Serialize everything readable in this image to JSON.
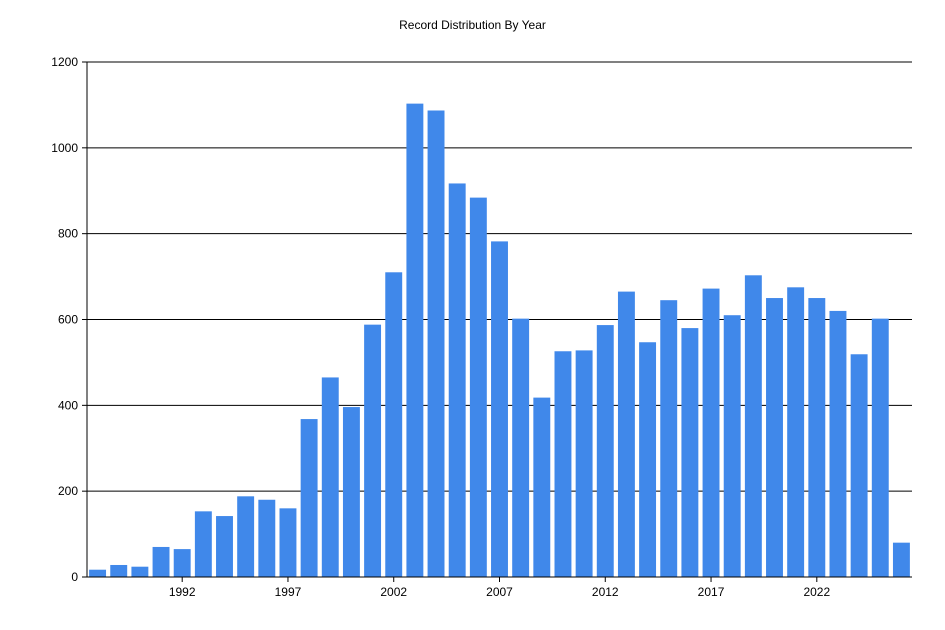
{
  "chart_data": {
    "type": "bar",
    "title": "Record Distribution By Year",
    "xlabel": "",
    "ylabel": "",
    "x": [
      1988,
      1989,
      1990,
      1991,
      1992,
      1993,
      1994,
      1995,
      1996,
      1997,
      1998,
      1999,
      2000,
      2001,
      2002,
      2003,
      2004,
      2005,
      2006,
      2007,
      2008,
      2009,
      2010,
      2011,
      2012,
      2013,
      2014,
      2015,
      2016,
      2017,
      2018,
      2019,
      2020,
      2021,
      2022,
      2023,
      2024,
      2025,
      2026
    ],
    "values": [
      17,
      28,
      24,
      70,
      65,
      153,
      142,
      188,
      180,
      160,
      368,
      465,
      396,
      588,
      710,
      1103,
      1087,
      917,
      884,
      782,
      602,
      418,
      526,
      528,
      587,
      665,
      547,
      645,
      580,
      672,
      610,
      703,
      650,
      675,
      650,
      620,
      519,
      602,
      80
    ],
    "xticks": [
      "1992",
      "1997",
      "2002",
      "2007",
      "2012",
      "2017",
      "2022"
    ],
    "yticks": [
      "0",
      "200",
      "400",
      "600",
      "800",
      "1000",
      "1200"
    ],
    "ylim": [
      0,
      1200
    ],
    "bar_color": "#4088EA",
    "grid": "horizontal",
    "legend": "none"
  }
}
